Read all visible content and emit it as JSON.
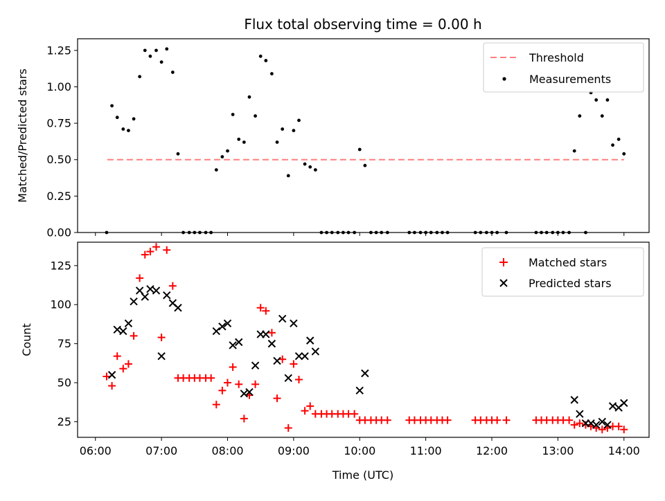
{
  "figure": {
    "title": "Flux total observing time = 0.00 h",
    "xlabel": "Time (UTC)",
    "x_ticks": [
      "06:00",
      "07:00",
      "08:00",
      "09:00",
      "10:00",
      "11:00",
      "12:00",
      "13:00",
      "14:00"
    ]
  },
  "colors": {
    "threshold": "#ff7f7f",
    "measurements": "#000000",
    "matched": "#ff0000",
    "predicted": "#000000"
  },
  "chart_data": [
    {
      "type": "scatter",
      "ylabel": "Matched/Predicted stars",
      "x_unit": "hours UTC",
      "xlim": [
        5.73,
        14.38
      ],
      "ylim": [
        0.0,
        1.33
      ],
      "y_ticks": [
        "0.00",
        "0.25",
        "0.50",
        "0.75",
        "1.00",
        "1.25"
      ],
      "legend": {
        "placement": "top-right",
        "entries": [
          "Threshold",
          "Measurements"
        ]
      },
      "threshold": {
        "name": "Threshold",
        "y": 0.5,
        "x": [
          6.18,
          14.0
        ]
      },
      "series": [
        {
          "name": "Measurements",
          "x": [
            6.17,
            6.25,
            6.33,
            6.42,
            6.5,
            6.58,
            6.67,
            6.75,
            6.83,
            6.92,
            7.0,
            7.08,
            7.17,
            7.25,
            7.33,
            7.42,
            7.5,
            7.58,
            7.67,
            7.75,
            7.83,
            7.92,
            8.0,
            8.08,
            8.17,
            8.25,
            8.33,
            8.42,
            8.5,
            8.58,
            8.67,
            8.75,
            8.83,
            8.92,
            9.0,
            9.08,
            9.17,
            9.25,
            9.33,
            9.42,
            9.5,
            9.58,
            9.67,
            9.75,
            9.83,
            9.92,
            10.0,
            10.08,
            10.17,
            10.25,
            10.33,
            10.42,
            10.75,
            10.83,
            10.92,
            11.0,
            11.08,
            11.17,
            11.25,
            11.33,
            11.75,
            11.83,
            11.92,
            12.0,
            12.08,
            12.22,
            12.67,
            12.75,
            12.83,
            12.92,
            13.0,
            13.08,
            13.17,
            13.25,
            13.33,
            13.42,
            13.5,
            13.58,
            13.67,
            13.75,
            13.83,
            13.92,
            14.0
          ],
          "y": [
            0.0,
            0.87,
            0.79,
            0.71,
            0.7,
            0.78,
            1.07,
            1.25,
            1.21,
            1.25,
            1.17,
            1.26,
            1.1,
            0.54,
            0.0,
            0.0,
            0.0,
            0.0,
            0.0,
            0.0,
            0.43,
            0.52,
            0.56,
            0.81,
            0.64,
            0.62,
            0.93,
            0.8,
            1.21,
            1.18,
            1.09,
            0.62,
            0.71,
            0.39,
            0.7,
            0.77,
            0.47,
            0.45,
            0.43,
            0.0,
            0.0,
            0.0,
            0.0,
            0.0,
            0.0,
            0.0,
            0.57,
            0.46,
            0.0,
            0.0,
            0.0,
            0.0,
            0.0,
            0.0,
            0.0,
            0.0,
            0.0,
            0.0,
            0.0,
            0.0,
            0.0,
            0.0,
            0.0,
            0.0,
            0.0,
            0.0,
            0.0,
            0.0,
            0.0,
            0.0,
            0.0,
            0.0,
            0.0,
            0.56,
            0.8,
            0.0,
            0.96,
            0.91,
            0.8,
            0.91,
            0.6,
            0.64,
            0.54
          ]
        }
      ]
    },
    {
      "type": "scatter",
      "ylabel": "Count",
      "x_unit": "hours UTC",
      "xlim": [
        5.73,
        14.38
      ],
      "ylim": [
        15.0,
        140.0
      ],
      "y_ticks": [
        "25",
        "50",
        "75",
        "100",
        "125"
      ],
      "legend": {
        "placement": "top-right",
        "entries": [
          "Matched stars",
          "Predicted stars"
        ]
      },
      "series": [
        {
          "name": "Matched stars",
          "x": [
            6.17,
            6.25,
            6.33,
            6.42,
            6.5,
            6.58,
            6.67,
            6.75,
            6.83,
            6.92,
            7.0,
            7.08,
            7.17,
            7.25,
            7.33,
            7.42,
            7.5,
            7.58,
            7.67,
            7.75,
            7.83,
            7.92,
            8.0,
            8.08,
            8.17,
            8.25,
            8.33,
            8.42,
            8.5,
            8.58,
            8.67,
            8.75,
            8.83,
            8.92,
            9.0,
            9.08,
            9.17,
            9.25,
            9.33,
            9.42,
            9.5,
            9.58,
            9.67,
            9.75,
            9.83,
            9.92,
            10.0,
            10.08,
            10.17,
            10.25,
            10.33,
            10.42,
            10.75,
            10.83,
            10.92,
            11.0,
            11.08,
            11.17,
            11.25,
            11.33,
            11.75,
            11.83,
            11.92,
            12.0,
            12.08,
            12.22,
            12.67,
            12.75,
            12.83,
            12.92,
            13.0,
            13.08,
            13.17,
            13.25,
            13.33,
            13.42,
            13.5,
            13.58,
            13.67,
            13.75,
            13.83,
            13.92,
            14.0
          ],
          "y": [
            54,
            48,
            67,
            59,
            62,
            80,
            117,
            132,
            134,
            137,
            79,
            135,
            112,
            53,
            53,
            53,
            53,
            53,
            53,
            53,
            36,
            45,
            50,
            60,
            49,
            27,
            42,
            49,
            98,
            96,
            82,
            40,
            65,
            21,
            62,
            52,
            32,
            35,
            30,
            30,
            30,
            30,
            30,
            30,
            30,
            30,
            26,
            26,
            26,
            26,
            26,
            26,
            26,
            26,
            26,
            26,
            26,
            26,
            26,
            26,
            26,
            26,
            26,
            26,
            26,
            26,
            26,
            26,
            26,
            26,
            26,
            26,
            26,
            23,
            24,
            23,
            22,
            21,
            20,
            21,
            22,
            22,
            20
          ]
        },
        {
          "name": "Predicted stars",
          "x": [
            6.25,
            6.33,
            6.42,
            6.5,
            6.58,
            6.67,
            6.75,
            6.83,
            6.92,
            7.0,
            7.08,
            7.17,
            7.25,
            7.83,
            7.92,
            8.0,
            8.08,
            8.17,
            8.25,
            8.33,
            8.42,
            8.5,
            8.58,
            8.67,
            8.75,
            8.83,
            8.92,
            9.0,
            9.08,
            9.17,
            9.25,
            9.33,
            10.0,
            10.08,
            13.25,
            13.33,
            13.42,
            13.5,
            13.58,
            13.67,
            13.75,
            13.83,
            13.92,
            14.0
          ],
          "y": [
            55,
            84,
            83,
            88,
            102,
            109,
            105,
            110,
            109,
            67,
            106,
            101,
            98,
            83,
            86,
            88,
            74,
            76,
            43,
            44,
            61,
            81,
            81,
            75,
            64,
            91,
            53,
            88,
            67,
            67,
            77,
            70,
            45,
            56,
            39,
            30,
            24,
            24,
            23,
            25,
            23,
            35,
            34,
            37
          ]
        }
      ]
    }
  ]
}
